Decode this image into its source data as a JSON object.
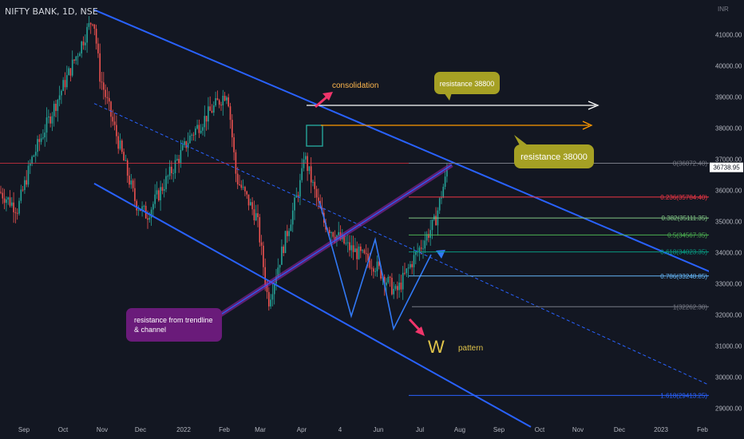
{
  "header": {
    "symbol": "NIFTY BANK, 1D, NSE",
    "currency": "INR"
  },
  "chart_data": {
    "type": "candlestick",
    "title": "NIFTY BANK, 1D, NSE",
    "x_ticks": [
      "Sep",
      "Oct",
      "Nov",
      "Dec",
      "2022",
      "Feb",
      "Mar",
      "Apr",
      "4",
      "Jun",
      "Jul",
      "Aug",
      "Sep",
      "Oct",
      "Nov",
      "Dec",
      "2023",
      "Feb"
    ],
    "y_ticks": [
      41000,
      40000,
      39000,
      38000,
      37000,
      36000,
      35000,
      34000,
      33000,
      32000,
      31000,
      30000,
      29000
    ],
    "y_tick_labels": [
      "41000.00",
      "40000.00",
      "39000.00",
      "38000.00",
      "37000.00",
      "36000.00",
      "35000.00",
      "34000.00",
      "33000.00",
      "32000.00",
      "31000.00",
      "30000.00",
      "29000.00"
    ],
    "ylim": [
      28400,
      41900
    ],
    "last_price": 36738.95,
    "last_price_label": "36738.95",
    "price_path": [
      {
        "x": "Aug",
        "y": 36200
      },
      {
        "x": "Sep",
        "y": 35400
      },
      {
        "x": "Sep",
        "y": 37000
      },
      {
        "x": "Oct",
        "y": 38800
      },
      {
        "x": "Oct",
        "y": 41600
      },
      {
        "x": "Nov",
        "y": 39700
      },
      {
        "x": "Nov",
        "y": 38300
      },
      {
        "x": "Dec",
        "y": 35600
      },
      {
        "x": "Dec",
        "y": 35200
      },
      {
        "x": "2022",
        "y": 37800
      },
      {
        "x": "Feb",
        "y": 39200
      },
      {
        "x": "Feb",
        "y": 36400
      },
      {
        "x": "Mar",
        "y": 35100
      },
      {
        "x": "Mar",
        "y": 32400
      },
      {
        "x": "Apr",
        "y": 36400
      },
      {
        "x": "Apr",
        "y": 37200
      },
      {
        "x": "4",
        "y": 35000
      },
      {
        "x": "4",
        "y": 34200
      },
      {
        "x": "Jun",
        "y": 33600
      },
      {
        "x": "Jun",
        "y": 32700
      },
      {
        "x": "Jul",
        "y": 33800
      },
      {
        "x": "Jul",
        "y": 35000
      },
      {
        "x": "Jul",
        "y": 36740
      }
    ],
    "fibonacci": [
      {
        "label": "0(36872.40)",
        "value": 36872.4,
        "color": "#787b86"
      },
      {
        "label": "0.236(35784.40)",
        "value": 35784.4,
        "color": "#f23645"
      },
      {
        "label": "0.382(35111.35)",
        "value": 35111.35,
        "color": "#81c784"
      },
      {
        "label": "0.5(34567.35)",
        "value": 34567.35,
        "color": "#4caf50"
      },
      {
        "label": "0.618(34023.35)",
        "value": 34023.35,
        "color": "#089981"
      },
      {
        "label": "0.786(33248.85)",
        "value": 33248.85,
        "color": "#64b5f6"
      },
      {
        "label": "1(32262.30)",
        "value": 32262.3,
        "color": "#787b86"
      },
      {
        "label": "1.618(29413.25)",
        "value": 29413.25,
        "color": "#2962ff"
      }
    ],
    "annotations": {
      "consolidation": "consolidation",
      "resistance_38800": "resistance 38800",
      "resistance_38000": "resistance  38000",
      "trendline_resistance": [
        "resistance from trendline",
        "& channel"
      ],
      "w_letter": "W",
      "pattern": "pattern"
    },
    "colors": {
      "background": "#131722",
      "up": "#26a69a",
      "down": "#ef5350",
      "channel": "#2962ff",
      "pattern": "#3179f5",
      "trendline": "#9c27b0",
      "callout_olive": "#a5a024",
      "callout_purple": "#6a1b7a",
      "arrow_pink": "#f0356b",
      "arrow_white": "#ffffff",
      "arrow_orange": "#ff9800",
      "w_text": "#e0c44a"
    }
  }
}
